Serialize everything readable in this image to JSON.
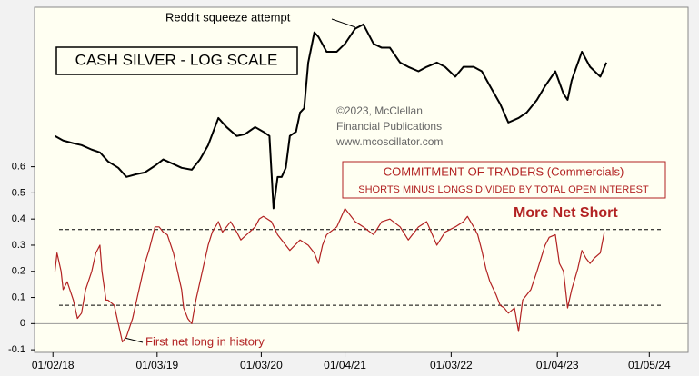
{
  "chart_data": {
    "type": "line",
    "title": "CASH SILVER - LOG SCALE",
    "cot_title": "COMMITMENT OF TRADERS (Commercials)",
    "cot_subtitle": "SHORTS MINUS LONGS DIVIDED BY TOTAL OPEN INTEREST",
    "copyright": [
      "©2023, McClellan",
      "Financial Publications",
      "www.mcoscillator.com"
    ],
    "annotations": [
      "Reddit squeeze attempt",
      "First net long in history",
      "More Net Short"
    ],
    "xlim": [
      0,
      320
    ],
    "xticks": [
      {
        "value": 9,
        "label": "01/02/18"
      },
      {
        "value": 60,
        "label": "01/03/19"
      },
      {
        "value": 111,
        "label": "01/03/20"
      },
      {
        "value": 152,
        "label": "01/04/21"
      },
      {
        "value": 204,
        "label": "01/03/22"
      },
      {
        "value": 256,
        "label": "01/04/23"
      },
      {
        "value": 301,
        "label": "01/05/24"
      }
    ],
    "ylim": [
      -0.11,
      1.21
    ],
    "yticks": [
      -0.1,
      0,
      0.1,
      0.2,
      0.3,
      0.4,
      0.5,
      0.6
    ],
    "hlines": [
      0.36,
      0.07
    ],
    "y2lim": [
      6.2,
      32
    ],
    "y2log": true,
    "series": [
      {
        "name": "Cash Silver",
        "color": "#000000",
        "axis": "y2",
        "x": [
          10,
          14,
          19,
          23,
          28,
          32,
          36,
          41,
          45,
          50,
          54,
          59,
          63,
          68,
          72,
          77,
          81,
          85,
          90,
          94,
          99,
          103,
          108,
          112,
          115,
          117,
          119,
          121,
          123,
          125,
          128,
          130,
          132,
          134,
          137,
          139,
          143,
          148,
          152,
          157,
          161,
          166,
          170,
          174,
          179,
          183,
          188,
          192,
          197,
          201,
          206,
          210,
          215,
          219,
          223,
          228,
          232,
          237,
          241,
          246,
          250,
          255,
          259,
          261,
          263,
          268,
          272,
          277,
          280
        ],
        "values": [
          17.35,
          16.98,
          16.76,
          16.61,
          16.26,
          16.05,
          15.37,
          14.91,
          14.28,
          14.47,
          14.59,
          15.06,
          15.52,
          15.18,
          14.91,
          14.78,
          15.52,
          16.61,
          18.9,
          18.1,
          17.35,
          17.5,
          18.1,
          17.7,
          17.35,
          12.3,
          14.28,
          14.28,
          14.91,
          17.35,
          17.7,
          19.4,
          19.8,
          24.6,
          28.4,
          27.8,
          25.9,
          25.9,
          26.9,
          28.9,
          29.5,
          26.9,
          26.4,
          26.4,
          24.6,
          24.1,
          23.6,
          24.1,
          24.6,
          24.1,
          23.0,
          24.1,
          24.1,
          23.6,
          22.0,
          20.2,
          18.5,
          18.9,
          19.4,
          20.6,
          22.0,
          23.6,
          21.2,
          20.6,
          22.6,
          25.9,
          24.1,
          23.0,
          24.6
        ]
      },
      {
        "name": "Commercials",
        "color": "#b22222",
        "x": [
          10,
          11,
          13,
          14,
          16,
          19,
          21,
          23,
          25,
          28,
          30,
          32,
          33,
          35,
          36,
          39,
          41,
          43,
          45,
          48,
          50,
          52,
          54,
          56,
          59,
          61,
          63,
          65,
          68,
          70,
          72,
          73,
          75,
          77,
          79,
          81,
          83,
          85,
          87,
          90,
          92,
          94,
          96,
          99,
          101,
          108,
          110,
          112,
          114,
          116,
          119,
          125,
          130,
          134,
          137,
          139,
          141,
          143,
          148,
          152,
          154,
          157,
          161,
          166,
          170,
          174,
          179,
          183,
          188,
          192,
          197,
          201,
          206,
          210,
          212,
          215,
          217,
          219,
          221,
          223,
          226,
          228,
          230,
          232,
          235,
          237,
          239,
          241,
          243,
          246,
          248,
          250,
          252,
          255,
          257,
          259,
          261,
          263,
          266,
          268,
          270,
          272,
          274,
          277,
          279
        ],
        "values": [
          0.2,
          0.27,
          0.2,
          0.13,
          0.16,
          0.09,
          0.02,
          0.04,
          0.13,
          0.2,
          0.27,
          0.3,
          0.2,
          0.09,
          0.09,
          0.07,
          0,
          -0.07,
          -0.05,
          0.02,
          0.09,
          0.16,
          0.23,
          0.28,
          0.37,
          0.37,
          0.35,
          0.34,
          0.27,
          0.2,
          0.13,
          0.06,
          0.02,
          0,
          0.09,
          0.16,
          0.23,
          0.3,
          0.35,
          0.39,
          0.35,
          0.37,
          0.39,
          0.35,
          0.32,
          0.37,
          0.4,
          0.41,
          0.4,
          0.39,
          0.34,
          0.28,
          0.32,
          0.3,
          0.27,
          0.23,
          0.3,
          0.34,
          0.37,
          0.44,
          0.42,
          0.39,
          0.37,
          0.34,
          0.39,
          0.4,
          0.37,
          0.32,
          0.37,
          0.39,
          0.3,
          0.35,
          0.37,
          0.39,
          0.41,
          0.37,
          0.34,
          0.28,
          0.21,
          0.16,
          0.11,
          0.07,
          0.06,
          0.04,
          0.06,
          -0.03,
          0.09,
          0.11,
          0.13,
          0.2,
          0.25,
          0.3,
          0.33,
          0.34,
          0.23,
          0.2,
          0.06,
          0.13,
          0.21,
          0.28,
          0.25,
          0.23,
          0.25,
          0.27,
          0.35
        ]
      }
    ]
  }
}
